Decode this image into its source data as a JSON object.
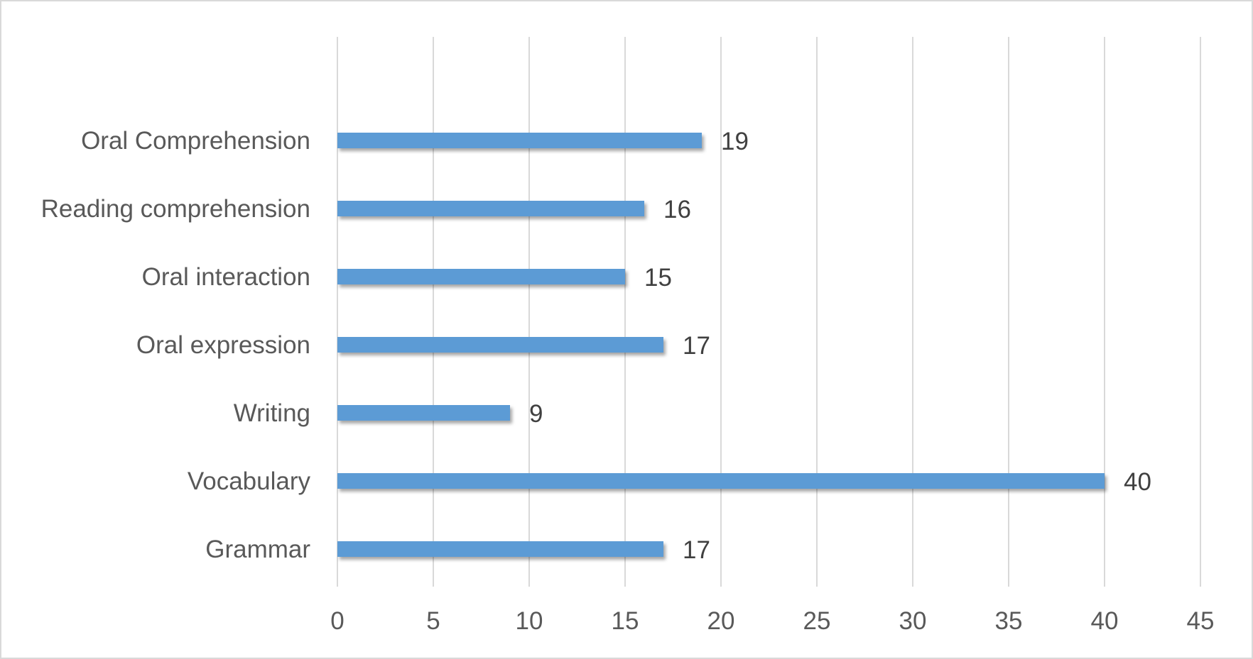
{
  "chart_data": {
    "type": "bar",
    "orientation": "horizontal",
    "categories": [
      "Oral Comprehension",
      "Reading comprehension",
      "Oral interaction",
      "Oral expression",
      "Writing",
      "Vocabulary",
      "Grammar"
    ],
    "values": [
      19,
      16,
      15,
      17,
      9,
      40,
      17
    ],
    "xlim": [
      0,
      45
    ],
    "xticks": [
      "0",
      "5",
      "10",
      "15",
      "20",
      "25",
      "30",
      "35",
      "40",
      "45"
    ],
    "grid": "vertical",
    "data_labels": true,
    "legend": "none",
    "colors": {
      "bar": "#5b9bd5",
      "grid": "#d9d9d9",
      "border": "#d9d9d9"
    }
  }
}
